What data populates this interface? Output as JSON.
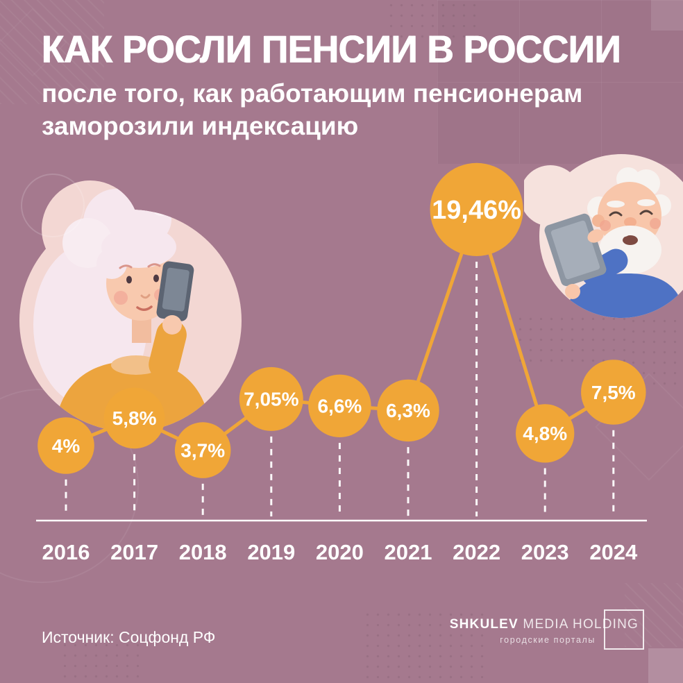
{
  "page": {
    "background": "#a5798e",
    "accent": "#f0a637",
    "text_color": "#ffffff"
  },
  "header": {
    "title": "КАК РОСЛИ ПЕНСИИ В РОССИИ",
    "subtitle_line1": "после того, как работающим пенсионерам",
    "subtitle_line2": "заморозили индексацию"
  },
  "chart_data": {
    "type": "line",
    "categories": [
      "2016",
      "2017",
      "2018",
      "2019",
      "2020",
      "2021",
      "2022",
      "2023",
      "2024"
    ],
    "values": [
      4,
      5.8,
      3.7,
      7.05,
      6.6,
      6.3,
      19.46,
      4.8,
      7.5
    ],
    "labels": [
      "4%",
      "5,8%",
      "3,7%",
      "7,05%",
      "6,6%",
      "6,3%",
      "19,46%",
      "4,8%",
      "7,5%"
    ],
    "title": "КАК РОСЛИ ПЕНСИИ В РОССИИ",
    "xlabel": "",
    "ylabel": "",
    "ylim": [
      0,
      22
    ],
    "grid": false,
    "legend": "none",
    "marker": "bubble",
    "line_color": "#f0a637",
    "bubble_color": "#f0a637",
    "value_label_color": "#ffffff",
    "axis_color": "#ffffff"
  },
  "illustrations": {
    "left": "elderly-woman-with-smartphone",
    "right": "elderly-man-with-tablet"
  },
  "footer": {
    "source": "Источник: Соцфонд РФ",
    "logo_primary": "SHKULEV",
    "logo_secondary": "MEDIA HOLDING",
    "logo_sub": "городские порталы"
  }
}
